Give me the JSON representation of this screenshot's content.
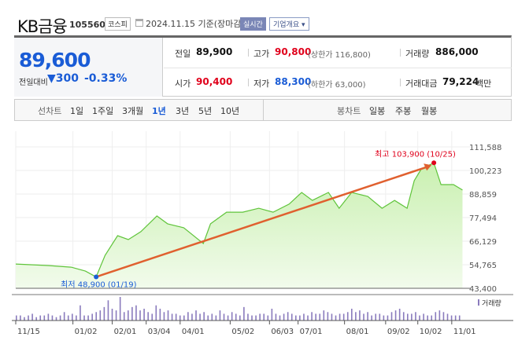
{
  "header": {
    "name": "KB금융",
    "code": "105560",
    "market": "코스피",
    "date": "2024.11.15 기준(장마감)",
    "realtime": "실시간",
    "overview": "기업개요 ▾"
  },
  "quote": {
    "price": "89,600",
    "change_label": "전일대비",
    "change": "▼300",
    "change_pct": "-0.33%"
  },
  "stats": {
    "prev_label": "전일",
    "prev": "89,900",
    "high_label": "고가",
    "high": "90,800",
    "upper_limit": "(상한가 116,800)",
    "volume_label": "거래량",
    "volume": "886,000",
    "open_label": "시가",
    "open": "90,400",
    "low_label": "저가",
    "low": "88,300",
    "lower_limit": "(하한가 63,000)",
    "amount_label": "거래대금",
    "amount": "79,224",
    "amount_unit": "백만"
  },
  "periods": {
    "label": "선차트",
    "items": [
      "1일",
      "1주일",
      "3개월",
      "1년",
      "3년",
      "5년",
      "10년"
    ],
    "selected": "1년"
  },
  "candle": {
    "label": "봉차트",
    "items": [
      "일봉",
      "주봉",
      "월봉"
    ]
  },
  "colors": {
    "accent": "#1a5cd6",
    "up": "#e0001b",
    "line": "#5fc43a",
    "fill": "#c9f0b0",
    "arrow": "#e0602f"
  },
  "chart_data": {
    "type": "area",
    "y_ticks": [
      "111,588",
      "100,223",
      "88,859",
      "77,494",
      "66,129",
      "54,765",
      "43,400"
    ],
    "ylim": [
      43400,
      111588
    ],
    "x_ticks": [
      "11/15",
      "01/02",
      "02/01",
      "03/04",
      "04/01",
      "05/02",
      "06/03",
      "07/01",
      "08/01",
      "09/02",
      "10/02",
      "11/01"
    ],
    "x_tick_idx": [
      0,
      32,
      54,
      73,
      92,
      120,
      142,
      158,
      184,
      207,
      225,
      244
    ],
    "xlim": [
      0,
      252
    ],
    "series": [
      [
        0,
        55100
      ],
      [
        18,
        54400
      ],
      [
        31,
        53600
      ],
      [
        39,
        51700
      ],
      [
        45,
        48900
      ],
      [
        50,
        59300
      ],
      [
        57,
        68800
      ],
      [
        63,
        66900
      ],
      [
        70,
        70700
      ],
      [
        79,
        78300
      ],
      [
        85,
        74500
      ],
      [
        94,
        72600
      ],
      [
        105,
        65000
      ],
      [
        109,
        74500
      ],
      [
        118,
        80100
      ],
      [
        127,
        80100
      ],
      [
        136,
        82000
      ],
      [
        144,
        80100
      ],
      [
        153,
        84000
      ],
      [
        160,
        89600
      ],
      [
        166,
        85800
      ],
      [
        175,
        89600
      ],
      [
        181,
        82000
      ],
      [
        188,
        89600
      ],
      [
        197,
        87700
      ],
      [
        205,
        82000
      ],
      [
        212,
        85800
      ],
      [
        219,
        82000
      ],
      [
        223,
        95300
      ],
      [
        227,
        101000
      ],
      [
        234,
        103900
      ],
      [
        238,
        93400
      ],
      [
        245,
        93400
      ],
      [
        250,
        90800
      ]
    ],
    "max_label": "최고 103,900 (10/25)",
    "min_label": "최저 48,900 (01/19)",
    "volume_label": "거래량",
    "volume": [
      3,
      3,
      2,
      3,
      4,
      2,
      3,
      3,
      4,
      3,
      2,
      3,
      5,
      3,
      4,
      3,
      9,
      3,
      3,
      4,
      5,
      6,
      8,
      12,
      7,
      6,
      14,
      5,
      6,
      8,
      9,
      6,
      7,
      5,
      4,
      9,
      7,
      5,
      6,
      4,
      4,
      3,
      3,
      5,
      4,
      6,
      4,
      5,
      3,
      4,
      3,
      6,
      4,
      3,
      5,
      4,
      3,
      8,
      4,
      3,
      3,
      4,
      4,
      3,
      7,
      4,
      3,
      4,
      5,
      4,
      3,
      3,
      4,
      3,
      5,
      4,
      4,
      6,
      5,
      4,
      3,
      4,
      4,
      5,
      7,
      5,
      6,
      4,
      5,
      3,
      4,
      4,
      3,
      3,
      5,
      6,
      7,
      5,
      4,
      4,
      5,
      3,
      4,
      3,
      3,
      5,
      6,
      5,
      4,
      3,
      3,
      3
    ]
  }
}
